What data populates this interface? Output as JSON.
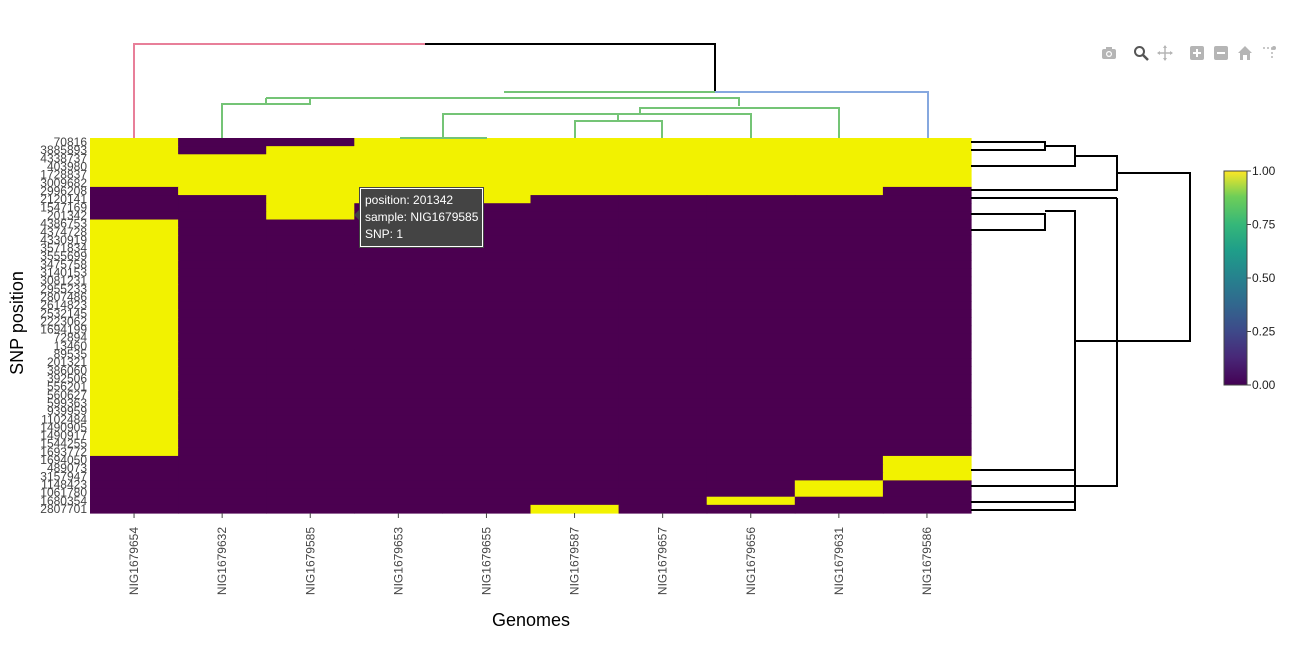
{
  "chart_data": {
    "type": "heatmap",
    "title": "",
    "xlabel": "Genomes",
    "ylabel": "SNP position",
    "x": [
      "NIG1679654",
      "NIG1679632",
      "NIG1679585",
      "NIG1679653",
      "NIG1679655",
      "NIG1679587",
      "NIG1679657",
      "NIG1679656",
      "NIG1679631",
      "NIG1679586"
    ],
    "y": [
      "70816",
      "3885893",
      "4338737",
      "403980",
      "1728837",
      "3009682",
      "2996208",
      "2120141",
      "1547169",
      "201342",
      "4386753",
      "4374728",
      "4330919",
      "3571834",
      "3555699",
      "3475758",
      "3140153",
      "3081231",
      "2955233",
      "2807486",
      "2614823",
      "2532145",
      "2223062",
      "1694199",
      "72894",
      "13460",
      "89535",
      "201321",
      "386060",
      "392506",
      "556201",
      "560627",
      "599363",
      "939959",
      "1102484",
      "1490905",
      "1490917",
      "1544255",
      "1693772",
      "1694050",
      "489073",
      "3157947",
      "1148423",
      "1061780",
      "1680354",
      "2807701"
    ],
    "z": [
      [
        1,
        0,
        0,
        1,
        1,
        1,
        1,
        1,
        1,
        1
      ],
      [
        1,
        0,
        1,
        1,
        1,
        1,
        1,
        1,
        1,
        1
      ],
      [
        1,
        1,
        1,
        1,
        1,
        1,
        1,
        1,
        1,
        1
      ],
      [
        1,
        1,
        1,
        1,
        1,
        1,
        1,
        1,
        1,
        1
      ],
      [
        1,
        1,
        1,
        1,
        1,
        1,
        1,
        1,
        1,
        1
      ],
      [
        1,
        1,
        1,
        1,
        1,
        1,
        1,
        1,
        1,
        1
      ],
      [
        0,
        1,
        1,
        1,
        1,
        1,
        1,
        1,
        1,
        0
      ],
      [
        0,
        0,
        1,
        1,
        1,
        0,
        0,
        0,
        0,
        0
      ],
      [
        0,
        0,
        1,
        0,
        0,
        0,
        0,
        0,
        0,
        0
      ],
      [
        0,
        0,
        1,
        0,
        0,
        0,
        0,
        0,
        0,
        0
      ],
      [
        1,
        0,
        0,
        0,
        0,
        0,
        0,
        0,
        0,
        0
      ],
      [
        1,
        0,
        0,
        0,
        0,
        0,
        0,
        0,
        0,
        0
      ],
      [
        1,
        0,
        0,
        0,
        0,
        0,
        0,
        0,
        0,
        0
      ],
      [
        1,
        0,
        0,
        0,
        0,
        0,
        0,
        0,
        0,
        0
      ],
      [
        1,
        0,
        0,
        0,
        0,
        0,
        0,
        0,
        0,
        0
      ],
      [
        1,
        0,
        0,
        0,
        0,
        0,
        0,
        0,
        0,
        0
      ],
      [
        1,
        0,
        0,
        0,
        0,
        0,
        0,
        0,
        0,
        0
      ],
      [
        1,
        0,
        0,
        0,
        0,
        0,
        0,
        0,
        0,
        0
      ],
      [
        1,
        0,
        0,
        0,
        0,
        0,
        0,
        0,
        0,
        0
      ],
      [
        1,
        0,
        0,
        0,
        0,
        0,
        0,
        0,
        0,
        0
      ],
      [
        1,
        0,
        0,
        0,
        0,
        0,
        0,
        0,
        0,
        0
      ],
      [
        1,
        0,
        0,
        0,
        0,
        0,
        0,
        0,
        0,
        0
      ],
      [
        1,
        0,
        0,
        0,
        0,
        0,
        0,
        0,
        0,
        0
      ],
      [
        1,
        0,
        0,
        0,
        0,
        0,
        0,
        0,
        0,
        0
      ],
      [
        1,
        0,
        0,
        0,
        0,
        0,
        0,
        0,
        0,
        0
      ],
      [
        1,
        0,
        0,
        0,
        0,
        0,
        0,
        0,
        0,
        0
      ],
      [
        1,
        0,
        0,
        0,
        0,
        0,
        0,
        0,
        0,
        0
      ],
      [
        1,
        0,
        0,
        0,
        0,
        0,
        0,
        0,
        0,
        0
      ],
      [
        1,
        0,
        0,
        0,
        0,
        0,
        0,
        0,
        0,
        0
      ],
      [
        1,
        0,
        0,
        0,
        0,
        0,
        0,
        0,
        0,
        0
      ],
      [
        1,
        0,
        0,
        0,
        0,
        0,
        0,
        0,
        0,
        0
      ],
      [
        1,
        0,
        0,
        0,
        0,
        0,
        0,
        0,
        0,
        0
      ],
      [
        1,
        0,
        0,
        0,
        0,
        0,
        0,
        0,
        0,
        0
      ],
      [
        1,
        0,
        0,
        0,
        0,
        0,
        0,
        0,
        0,
        0
      ],
      [
        1,
        0,
        0,
        0,
        0,
        0,
        0,
        0,
        0,
        0
      ],
      [
        1,
        0,
        0,
        0,
        0,
        0,
        0,
        0,
        0,
        0
      ],
      [
        1,
        0,
        0,
        0,
        0,
        0,
        0,
        0,
        0,
        0
      ],
      [
        1,
        0,
        0,
        0,
        0,
        0,
        0,
        0,
        0,
        0
      ],
      [
        1,
        0,
        0,
        0,
        0,
        0,
        0,
        0,
        0,
        0
      ],
      [
        0,
        0,
        0,
        0,
        0,
        0,
        0,
        0,
        0,
        1
      ],
      [
        0,
        0,
        0,
        0,
        0,
        0,
        0,
        0,
        0,
        1
      ],
      [
        0,
        0,
        0,
        0,
        0,
        0,
        0,
        0,
        0,
        1
      ],
      [
        0,
        0,
        0,
        0,
        0,
        0,
        0,
        0,
        1,
        0
      ],
      [
        0,
        0,
        0,
        0,
        0,
        0,
        0,
        0,
        1,
        0
      ],
      [
        0,
        0,
        0,
        0,
        0,
        0,
        0,
        1,
        0,
        0
      ],
      [
        0,
        0,
        0,
        0,
        0,
        1,
        0,
        0,
        0,
        0
      ]
    ],
    "zlim": [
      0,
      1
    ],
    "colorscale": "viridis",
    "colors": {
      "low": "#440154",
      "high": "#fde725",
      "cell_low": "#4b0050",
      "cell_high": "#f2f200"
    },
    "colorbar": {
      "ticks": [
        "1.00",
        "0.75",
        "0.50",
        "0.25",
        "0.00"
      ]
    },
    "dendrogram_colors": {
      "top_root": "#000000",
      "top_left": "#e87f99",
      "top_green": "#74c476",
      "top_blue": "#86a8df",
      "right": "#000000"
    }
  },
  "tooltip": {
    "position": "position: 201342",
    "sample": "sample: NIG1679585",
    "snp": "SNP: 1"
  },
  "modebar": {
    "icons": [
      "camera-icon",
      "zoom-icon",
      "pan-icon",
      "zoom-in-icon",
      "zoom-out-icon",
      "home-icon",
      "spike-lines-icon"
    ]
  }
}
